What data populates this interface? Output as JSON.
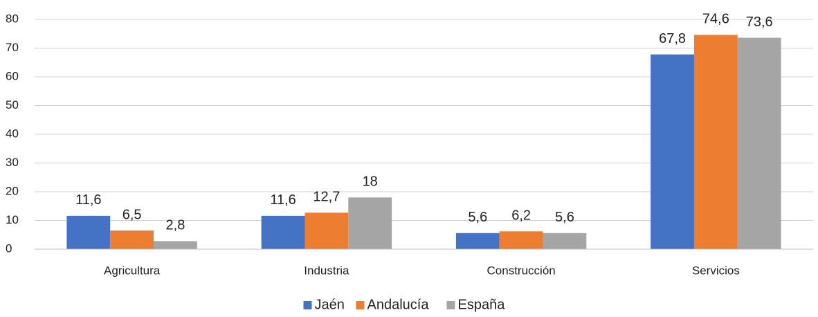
{
  "chart_data": {
    "type": "bar",
    "categories": [
      "Agricultura",
      "Industria",
      "Construcción",
      "Servicios"
    ],
    "series": [
      {
        "name": "Jaén",
        "color": "#4472c4",
        "values": [
          11.6,
          11.6,
          5.6,
          67.8
        ],
        "value_labels": [
          "11,6",
          "11,6",
          "5,6",
          "67,8"
        ]
      },
      {
        "name": "Andalucía",
        "color": "#ed7d31",
        "values": [
          6.5,
          12.7,
          6.2,
          74.6
        ],
        "value_labels": [
          "6,5",
          "12,7",
          "6,2",
          "74,6"
        ]
      },
      {
        "name": "España",
        "color": "#a5a5a5",
        "values": [
          2.8,
          18,
          5.6,
          73.6
        ],
        "value_labels": [
          "2,8",
          "18",
          "5,6",
          "73,6"
        ]
      }
    ],
    "ylim": [
      0,
      80
    ],
    "yticks": [
      0,
      10,
      20,
      30,
      40,
      50,
      60,
      70,
      80
    ],
    "grid": true,
    "legend": "bottom"
  }
}
